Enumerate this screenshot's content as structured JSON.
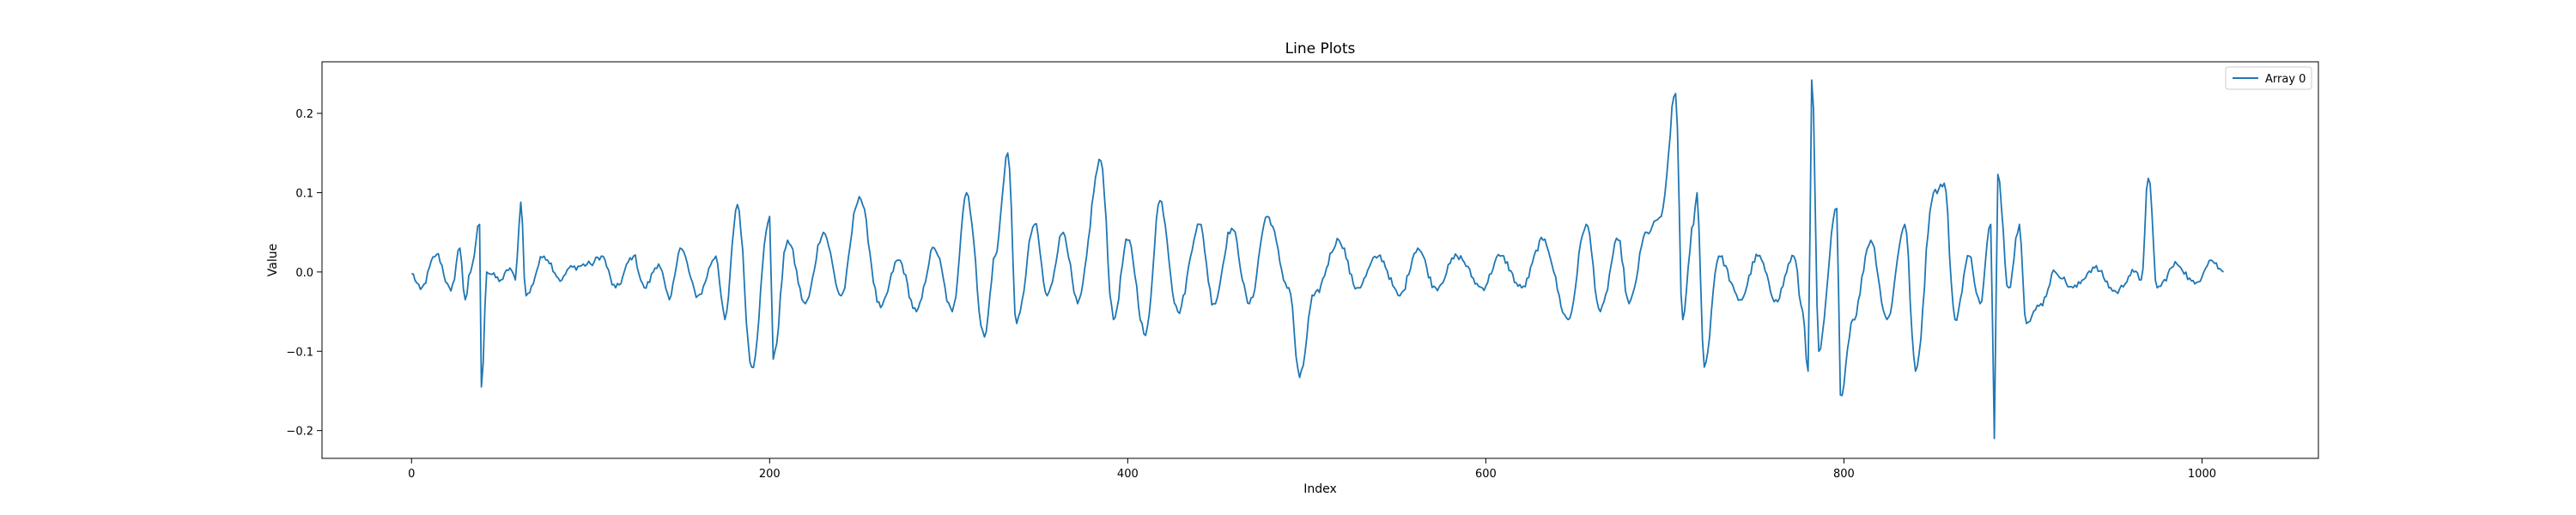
{
  "chart_data": {
    "type": "line",
    "title": "Line Plots",
    "xlabel": "Index",
    "ylabel": "Value",
    "xlim": [
      -50,
      1065
    ],
    "ylim": [
      -0.235,
      0.265
    ],
    "xticks": [
      0,
      200,
      400,
      600,
      800,
      1000
    ],
    "yticks": [
      -0.2,
      -0.1,
      0.0,
      0.1,
      0.2
    ],
    "xtick_labels": [
      "0",
      "200",
      "400",
      "600",
      "800",
      "1000"
    ],
    "ytick_labels": [
      "−0.2",
      "−0.1",
      "0.0",
      "0.1",
      "0.2"
    ],
    "grid": false,
    "legend": "upper right",
    "series": [
      {
        "name": "Array 0",
        "color": "#1f77b4",
        "x_range": [
          0,
          1012
        ],
        "keypoints": [
          [
            0,
            -0.002
          ],
          [
            5,
            -0.022
          ],
          [
            14,
            0.022
          ],
          [
            22,
            -0.024
          ],
          [
            27,
            0.03
          ],
          [
            30,
            -0.035
          ],
          [
            33,
            0.0
          ],
          [
            38,
            0.06
          ],
          [
            39,
            -0.145
          ],
          [
            42,
            0.0
          ],
          [
            50,
            -0.01
          ],
          [
            55,
            0.005
          ],
          [
            58,
            -0.01
          ],
          [
            61,
            0.088
          ],
          [
            64,
            -0.03
          ],
          [
            74,
            0.02
          ],
          [
            84,
            -0.01
          ],
          [
            88,
            0.005
          ],
          [
            100,
            0.01
          ],
          [
            106,
            0.02
          ],
          [
            114,
            -0.02
          ],
          [
            124,
            0.02
          ],
          [
            130,
            -0.02
          ],
          [
            138,
            0.01
          ],
          [
            144,
            -0.035
          ],
          [
            150,
            0.03
          ],
          [
            160,
            -0.03
          ],
          [
            170,
            0.02
          ],
          [
            175,
            -0.06
          ],
          [
            182,
            0.085
          ],
          [
            190,
            -0.12
          ],
          [
            200,
            0.07
          ],
          [
            202,
            -0.11
          ],
          [
            210,
            0.04
          ],
          [
            220,
            -0.04
          ],
          [
            230,
            0.05
          ],
          [
            240,
            -0.03
          ],
          [
            250,
            0.095
          ],
          [
            262,
            -0.045
          ],
          [
            272,
            0.015
          ],
          [
            282,
            -0.05
          ],
          [
            292,
            0.03
          ],
          [
            302,
            -0.05
          ],
          [
            310,
            0.1
          ],
          [
            320,
            -0.082
          ],
          [
            326,
            0.02
          ],
          [
            333,
            0.15
          ],
          [
            338,
            -0.065
          ],
          [
            348,
            0.06
          ],
          [
            355,
            -0.03
          ],
          [
            364,
            0.05
          ],
          [
            372,
            -0.04
          ],
          [
            385,
            0.14
          ],
          [
            392,
            -0.06
          ],
          [
            400,
            0.04
          ],
          [
            410,
            -0.08
          ],
          [
            418,
            0.09
          ],
          [
            428,
            -0.05
          ],
          [
            440,
            0.06
          ],
          [
            448,
            -0.04
          ],
          [
            458,
            0.055
          ],
          [
            468,
            -0.04
          ],
          [
            478,
            0.07
          ],
          [
            490,
            -0.02
          ],
          [
            496,
            -0.133
          ],
          [
            504,
            -0.03
          ],
          [
            518,
            0.04
          ],
          [
            528,
            -0.02
          ],
          [
            540,
            0.02
          ],
          [
            552,
            -0.03
          ],
          [
            562,
            0.03
          ],
          [
            572,
            -0.02
          ],
          [
            584,
            0.02
          ],
          [
            598,
            -0.02
          ],
          [
            608,
            0.02
          ],
          [
            620,
            -0.02
          ],
          [
            632,
            0.04
          ],
          [
            646,
            -0.06
          ],
          [
            656,
            0.06
          ],
          [
            664,
            -0.05
          ],
          [
            674,
            0.04
          ],
          [
            680,
            -0.04
          ],
          [
            690,
            0.05
          ],
          [
            698,
            0.07
          ],
          [
            706,
            0.225
          ],
          [
            710,
            -0.06
          ],
          [
            716,
            0.06
          ],
          [
            718,
            0.1
          ],
          [
            722,
            -0.12
          ],
          [
            730,
            0.02
          ],
          [
            742,
            -0.035
          ],
          [
            752,
            0.02
          ],
          [
            762,
            -0.035
          ],
          [
            772,
            0.02
          ],
          [
            777,
            -0.05
          ],
          [
            780,
            -0.125
          ],
          [
            782,
            0.242
          ],
          [
            786,
            -0.1
          ],
          [
            796,
            0.08
          ],
          [
            798,
            -0.155
          ],
          [
            805,
            -0.06
          ],
          [
            815,
            0.04
          ],
          [
            824,
            -0.06
          ],
          [
            834,
            0.06
          ],
          [
            840,
            -0.125
          ],
          [
            850,
            0.1
          ],
          [
            856,
            0.112
          ],
          [
            862,
            -0.06
          ],
          [
            870,
            0.02
          ],
          [
            876,
            -0.04
          ],
          [
            882,
            0.06
          ],
          [
            884,
            -0.21
          ],
          [
            886,
            0.123
          ],
          [
            892,
            -0.02
          ],
          [
            898,
            0.06
          ],
          [
            902,
            -0.065
          ],
          [
            910,
            -0.04
          ],
          [
            918,
            0.0
          ],
          [
            928,
            -0.02
          ],
          [
            940,
            0.005
          ],
          [
            952,
            -0.025
          ],
          [
            962,
            0.0
          ],
          [
            966,
            -0.01
          ],
          [
            970,
            0.118
          ],
          [
            975,
            -0.02
          ],
          [
            986,
            0.01
          ],
          [
            996,
            -0.015
          ],
          [
            1005,
            0.015
          ],
          [
            1012,
            0.0
          ]
        ]
      }
    ]
  }
}
